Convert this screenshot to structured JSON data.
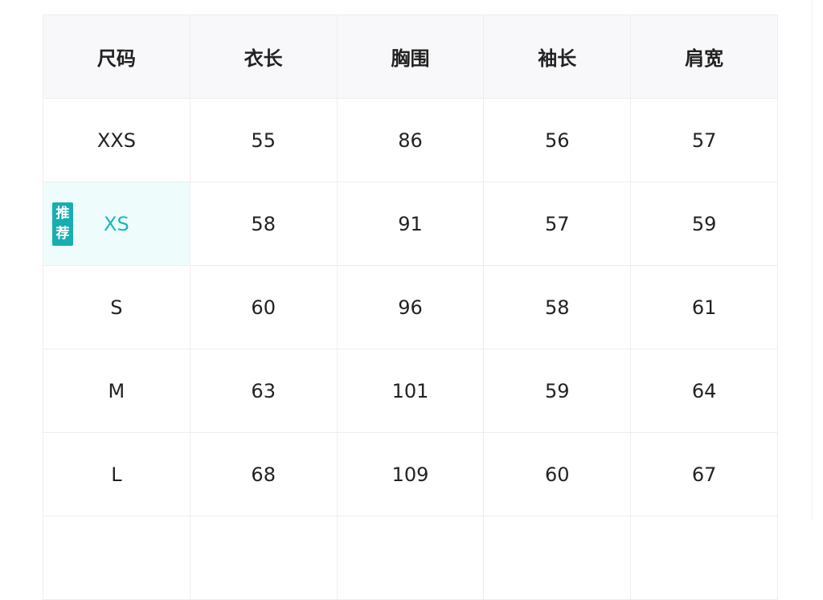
{
  "headers": [
    "尺码",
    "衣长",
    "胸围",
    "袖长",
    "肩宽"
  ],
  "rows": [
    {
      "size": "XXS",
      "values": [
        "55",
        "86",
        "56",
        "57"
      ]
    },
    {
      "size": "XS",
      "values": [
        "58",
        "91",
        "57",
        "59"
      ],
      "badge": "推荐"
    },
    {
      "size": "S",
      "values": [
        "60",
        "96",
        "58",
        "61"
      ]
    },
    {
      "size": "M",
      "values": [
        "63",
        "101",
        "59",
        "64"
      ]
    },
    {
      "size": "L",
      "values": [
        "68",
        "109",
        "60",
        "67"
      ]
    }
  ],
  "colors": {
    "accent": "#19b9b9",
    "badge": "#17aeb0",
    "recommended_row_bg": "#effcfc",
    "header_bg": "#f8f8fb"
  }
}
